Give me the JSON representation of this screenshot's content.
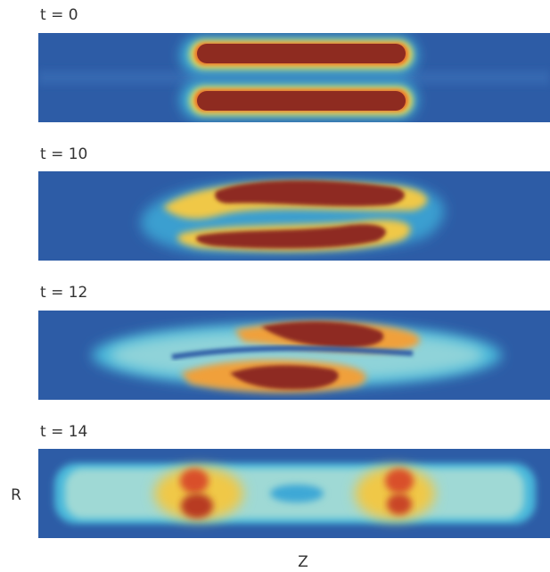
{
  "panels": [
    {
      "label": "t = 0"
    },
    {
      "label": "t = 10"
    },
    {
      "label": "t = 12"
    },
    {
      "label": "t = 14"
    }
  ],
  "axes": {
    "r_label": "R",
    "z_label": "Z"
  }
}
